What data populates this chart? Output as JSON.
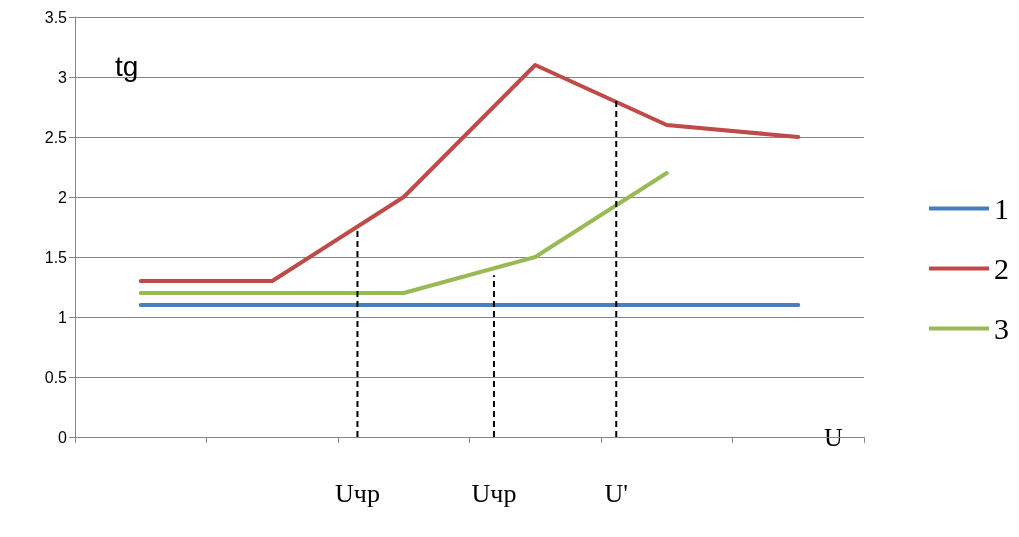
{
  "chart_data": {
    "type": "line",
    "xlabel": "U",
    "ylabel": "tg",
    "categories": [
      null,
      null,
      null,
      null,
      null,
      null
    ],
    "ylim": [
      0,
      3.5
    ],
    "yticks": [
      0,
      0.5,
      1,
      1.5,
      2,
      2.5,
      3,
      3.5
    ],
    "grid": "y",
    "legend": "right",
    "marker": "none",
    "line_style": "solid",
    "series": [
      {
        "name": "1",
        "color": "#4a7ebb",
        "values": [
          1.1,
          1.1,
          1.1,
          1.1,
          1.1,
          1.1
        ]
      },
      {
        "name": "2",
        "color": "#be4b48",
        "values": [
          1.3,
          1.3,
          2,
          3.1,
          2.6,
          2.5
        ]
      },
      {
        "name": "3",
        "color": "#98b954",
        "values": [
          1.2,
          1.2,
          1.2,
          1.5,
          2.2,
          null
        ]
      }
    ],
    "annotations": [
      "Uчр",
      "Uчр",
      "U'"
    ]
  }
}
